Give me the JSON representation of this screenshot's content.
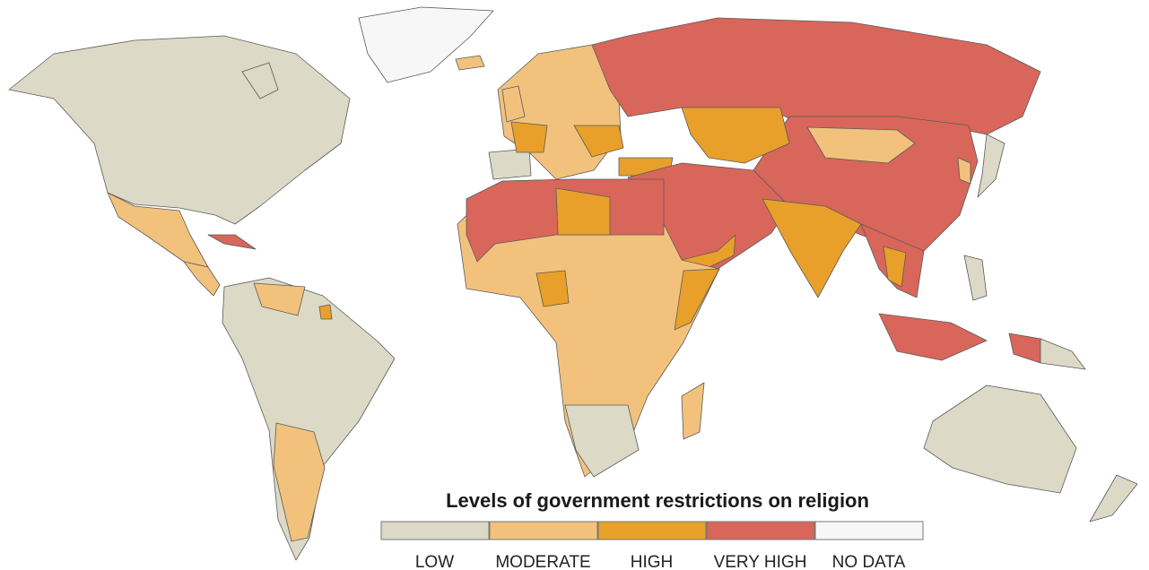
{
  "legend": {
    "title": "Levels of government restrictions on religion",
    "items": [
      {
        "label": "LOW",
        "color": "#dcd9c6"
      },
      {
        "label": "MODERATE",
        "color": "#f2c27d"
      },
      {
        "label": "HIGH",
        "color": "#e8a02a"
      },
      {
        "label": "VERY HIGH",
        "color": "#d9665a"
      },
      {
        "label": "NO DATA",
        "color": "#f7f7f7"
      }
    ]
  }
}
